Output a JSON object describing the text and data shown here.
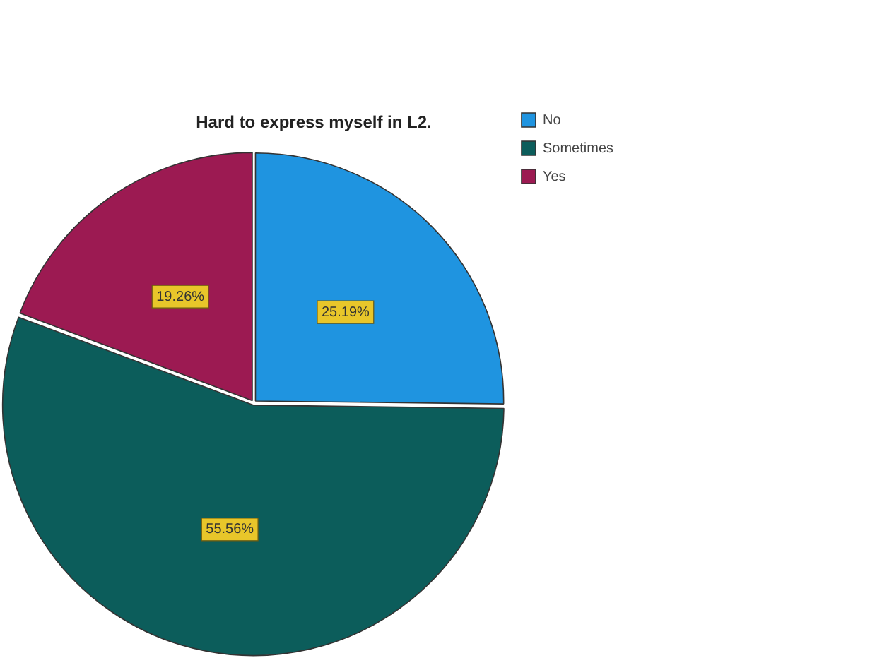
{
  "chart_data": {
    "type": "pie",
    "title": "Hard to express myself in L2.",
    "categories": [
      "No",
      "Sometimes",
      "Yes"
    ],
    "values": [
      25.19,
      55.56,
      19.26
    ],
    "colors": [
      "#1f94e0",
      "#0c5d5b",
      "#9c1a52"
    ],
    "value_labels": [
      "25.19%",
      "55.56%",
      "19.26%"
    ],
    "legend": "top right"
  }
}
